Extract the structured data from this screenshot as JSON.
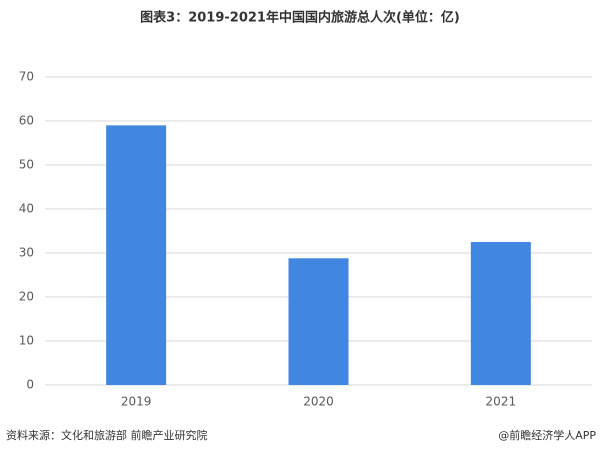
{
  "chart_data": {
    "type": "bar",
    "title": "图表3：2019-2021年中国国内旅游总人次(单位：亿)",
    "categories": [
      "2019",
      "2020",
      "2021"
    ],
    "values": [
      59,
      28.8,
      32.5
    ],
    "color": "#4187e2",
    "ylim": [
      0,
      70
    ],
    "yticks": [
      0,
      10,
      20,
      30,
      40,
      50,
      60,
      70
    ],
    "grid": true,
    "source": "资料来源：文化和旅游部 前瞻产业研究院",
    "credit": "@前瞻经济学人APP"
  }
}
